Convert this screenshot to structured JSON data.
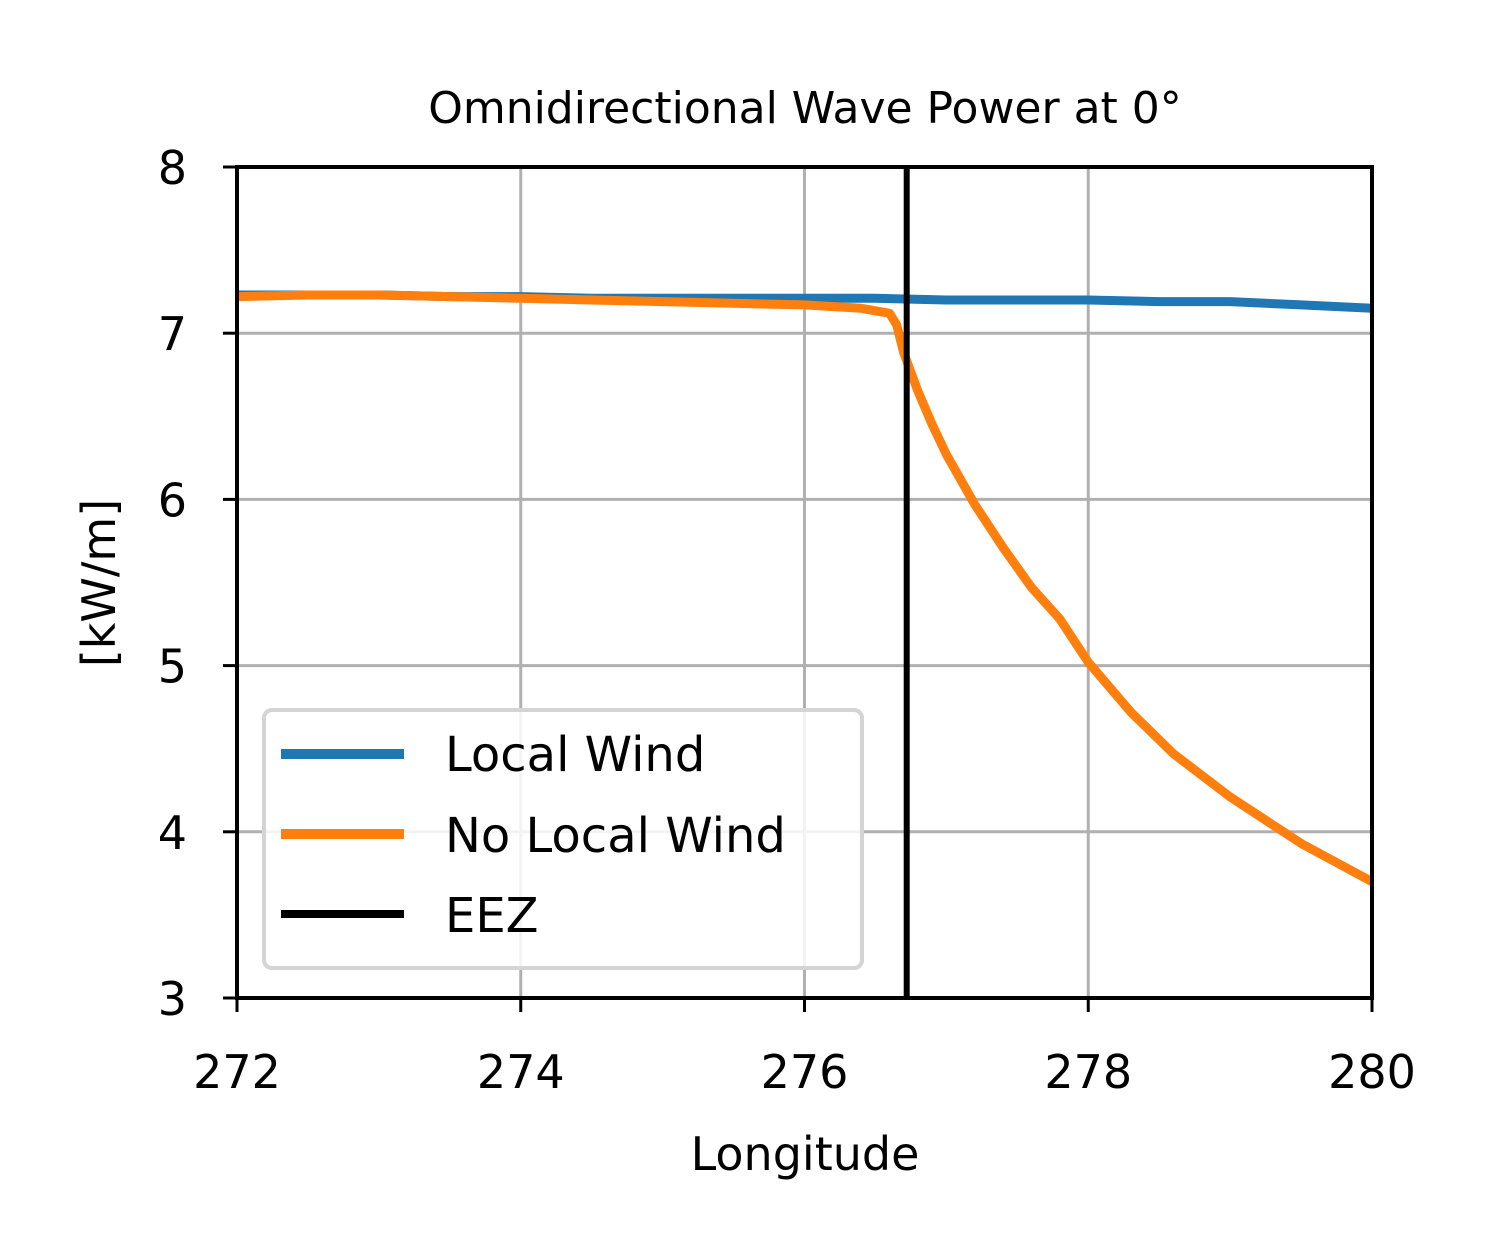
{
  "chart_data": {
    "type": "line",
    "title": "Omnidirectional Wave Power at 0$^{\\circ}$",
    "title_display": "Omnidirectional Wave Power at 0°",
    "xlabel": "Longitude",
    "ylabel": "[kW/m]",
    "xlim": [
      272,
      280
    ],
    "ylim": [
      3,
      8
    ],
    "xticks": [
      "272",
      "274",
      "276",
      "278",
      "280"
    ],
    "yticks": [
      "3",
      "4",
      "5",
      "6",
      "7",
      "8"
    ],
    "grid": true,
    "legend_position": "lower-left",
    "series": [
      {
        "name": "Local Wind",
        "color": "#1f77b4",
        "x": [
          272.0,
          272.5,
          273.0,
          273.5,
          274.0,
          274.5,
          275.0,
          275.5,
          276.0,
          276.5,
          277.0,
          277.5,
          278.0,
          278.5,
          279.0,
          279.5,
          280.0
        ],
        "y": [
          7.23,
          7.23,
          7.23,
          7.22,
          7.22,
          7.21,
          7.21,
          7.21,
          7.21,
          7.21,
          7.2,
          7.2,
          7.2,
          7.19,
          7.19,
          7.17,
          7.15
        ]
      },
      {
        "name": "No Local Wind",
        "color": "#ff7f0e",
        "x": [
          272.0,
          272.5,
          273.0,
          273.5,
          274.0,
          274.5,
          275.0,
          275.5,
          276.0,
          276.4,
          276.6,
          276.65,
          276.7,
          276.8,
          276.9,
          277.0,
          277.2,
          277.4,
          277.6,
          277.8,
          278.0,
          278.3,
          278.6,
          279.0,
          279.5,
          280.0
        ],
        "y": [
          7.22,
          7.23,
          7.23,
          7.22,
          7.21,
          7.2,
          7.19,
          7.18,
          7.17,
          7.15,
          7.12,
          7.05,
          6.88,
          6.65,
          6.45,
          6.27,
          5.97,
          5.71,
          5.47,
          5.28,
          5.02,
          4.72,
          4.47,
          4.21,
          3.93,
          3.7
        ]
      },
      {
        "name": "EEZ",
        "color": "#000000",
        "x": [
          276.72,
          276.72
        ],
        "y": [
          3,
          8
        ]
      }
    ]
  }
}
